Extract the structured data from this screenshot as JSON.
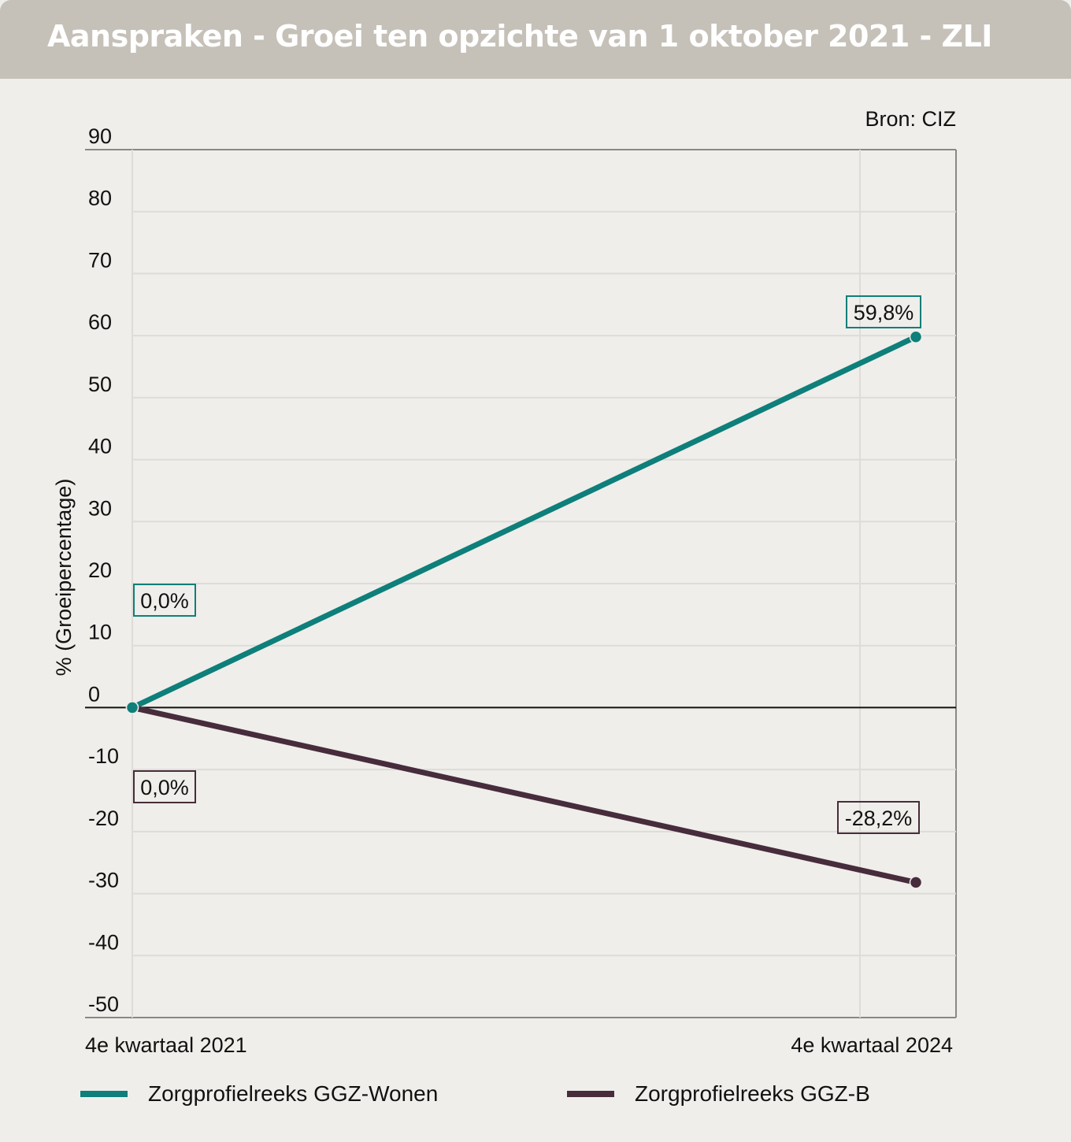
{
  "header": {
    "title": "Aanspraken - Groei ten opzichte van 1 oktober 2021 - ZLI"
  },
  "source": "Bron: CIZ",
  "chart_data": {
    "type": "line",
    "title": "Aanspraken - Groei ten opzichte van 1 oktober 2021 - ZLI",
    "ylabel": "% (Groeipercentage)",
    "xlabel": "",
    "categories": [
      "4e kwartaal 2021",
      "4e kwartaal 2024"
    ],
    "ylim": [
      -50,
      90
    ],
    "yticks": [
      90,
      80,
      70,
      60,
      50,
      40,
      30,
      20,
      10,
      0,
      -10,
      -20,
      -30,
      -40,
      -50
    ],
    "grid": true,
    "legend": "bottom",
    "series": [
      {
        "name": "Zorgprofielreeks GGZ-Wonen",
        "values": [
          0,
          59.8
        ],
        "labels": [
          "0,0%",
          "59,8%"
        ],
        "color": "#0e7f7a"
      },
      {
        "name": "Zorgprofielreeks GGZ-B",
        "values": [
          0,
          -28.2
        ],
        "labels": [
          "0,0%",
          "-28,2%"
        ],
        "color": "#472c3c"
      }
    ]
  }
}
